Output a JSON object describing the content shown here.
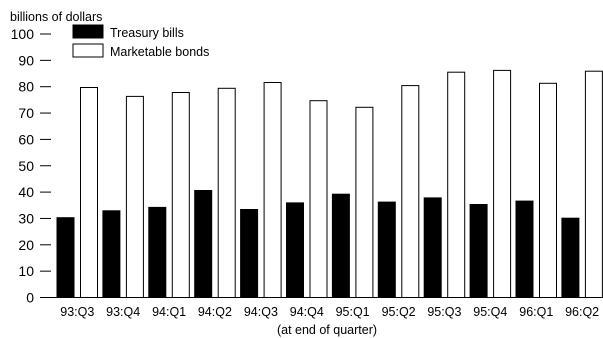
{
  "chart_data": {
    "type": "bar",
    "title": "",
    "ylabel": "billions of dollars",
    "xlabel": "(at end of quarter)",
    "ylim": [
      0,
      100
    ],
    "yticks": [
      0,
      10,
      20,
      30,
      40,
      50,
      60,
      70,
      80,
      90,
      100
    ],
    "grid": false,
    "legend_position": "top-left",
    "categories": [
      "93:Q3",
      "93:Q4",
      "94:Q1",
      "94:Q2",
      "94:Q3",
      "94:Q4",
      "95:Q1",
      "95:Q2",
      "95:Q3",
      "95:Q4",
      "96:Q1",
      "96:Q2"
    ],
    "series": [
      {
        "name": "Treasury bills",
        "color": "#000000",
        "values": [
          30.3,
          32.9,
          34.2,
          40.6,
          33.4,
          35.9,
          39.2,
          36.2,
          37.8,
          35.3,
          36.6,
          30.1
        ]
      },
      {
        "name": "Marketable bonds",
        "color": "#ffffff",
        "values": [
          79.7,
          76.3,
          77.8,
          79.4,
          81.6,
          74.7,
          72.2,
          80.4,
          85.5,
          86.2,
          81.3,
          85.9
        ]
      }
    ]
  }
}
